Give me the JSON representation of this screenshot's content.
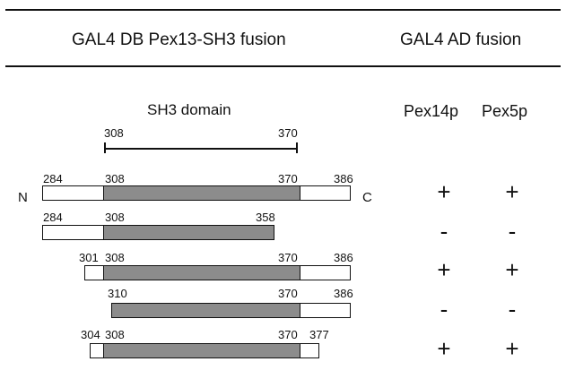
{
  "header": {
    "db_label": "GAL4 DB Pex13-SH3 fusion",
    "ad_label": "GAL4 AD fusion"
  },
  "domain_label": "SH3 domain",
  "scale": {
    "start": "308",
    "end": "370"
  },
  "columns": [
    "Pex14p",
    "Pex5p"
  ],
  "termini": {
    "n": "N",
    "c": "C"
  },
  "constructs": [
    {
      "labels": [
        "284",
        "308",
        "370",
        "386"
      ],
      "results": [
        "+",
        "+"
      ]
    },
    {
      "labels": [
        "284",
        "308",
        "358"
      ],
      "results": [
        "-",
        "-"
      ]
    },
    {
      "labels": [
        "301",
        "308",
        "370",
        "386"
      ],
      "results": [
        "+",
        "+"
      ]
    },
    {
      "labels": [
        "310",
        "370",
        "386"
      ],
      "results": [
        "-",
        "-"
      ]
    },
    {
      "labels": [
        "304",
        "308",
        "370",
        "377"
      ],
      "results": [
        "+",
        "+"
      ]
    }
  ]
}
